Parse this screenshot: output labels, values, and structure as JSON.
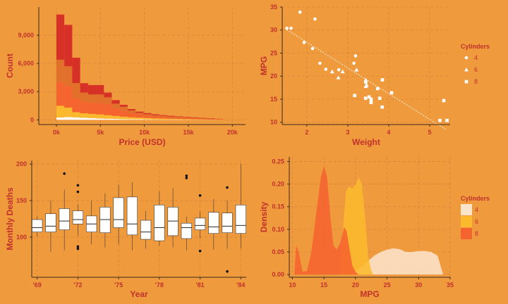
{
  "colors": {
    "background": "#F09A3E",
    "text": "#C0312B",
    "grid": "#D9843A",
    "white": "#FFFFFF",
    "cyl4": "#FCE3CC",
    "cyl6": "#FBBA2D",
    "cyl8": "#F5632F"
  },
  "chart_data": [
    {
      "id": "hist",
      "type": "bar",
      "stacked": true,
      "xlabel": "Price (USD)",
      "ylabel": "Count",
      "xlim": [
        -2000,
        21500
      ],
      "ylim": [
        -500,
        12000
      ],
      "bin_width": 900,
      "bin_starts": [
        0,
        900,
        1800,
        2700,
        3600,
        4500,
        5400,
        6300,
        7200,
        8100,
        9000,
        9900,
        10800,
        11700,
        12600,
        13500,
        14400,
        15300,
        16200,
        17100,
        18000
      ],
      "xticks": [
        0,
        5000,
        10000,
        15000,
        20000
      ],
      "xtick_labels": [
        "0k",
        "5k",
        "10k",
        "15k",
        "20k"
      ],
      "yticks": [
        0,
        3000,
        6000,
        9000
      ],
      "ytick_labels": [
        "0",
        "3,000",
        "6,000",
        "9,000"
      ],
      "series": [
        {
          "color": "#FFFFFF",
          "values": [
            250,
            300,
            260,
            220,
            190,
            150,
            120,
            100,
            80,
            70,
            60,
            50,
            40,
            35,
            30,
            25,
            20,
            15,
            12,
            10,
            5
          ]
        },
        {
          "color": "#FBBA2D",
          "values": [
            1250,
            1000,
            550,
            480,
            450,
            430,
            380,
            320,
            260,
            210,
            180,
            150,
            120,
            100,
            85,
            75,
            60,
            50,
            40,
            30,
            20
          ]
        },
        {
          "color": "#F5632F",
          "values": [
            2500,
            2300,
            1500,
            1200,
            1160,
            1220,
            1200,
            800,
            600,
            420,
            300,
            250,
            200,
            170,
            145,
            125,
            110,
            85,
            70,
            55,
            35
          ]
        },
        {
          "color": "#E0702A",
          "values": [
            2400,
            2100,
            1600,
            1000,
            900,
            900,
            700,
            500,
            460,
            300,
            200,
            150,
            140,
            120,
            100,
            90,
            70,
            60,
            50,
            40,
            30
          ]
        },
        {
          "color": "#D73027",
          "values": [
            4800,
            4400,
            2700,
            1000,
            1000,
            1000,
            500,
            380,
            200,
            150,
            140,
            120,
            100,
            75,
            70,
            55,
            50,
            50,
            40,
            35,
            20
          ]
        }
      ]
    },
    {
      "id": "scatter",
      "type": "scatter",
      "xlabel": "Weight",
      "ylabel": "MPG",
      "xlim": [
        1.4,
        5.5
      ],
      "ylim": [
        9.5,
        35
      ],
      "xticks": [
        2,
        3,
        4,
        5
      ],
      "yticks": [
        10,
        15,
        20,
        25,
        30,
        35
      ],
      "legend": {
        "title": "Cylinders",
        "labels": [
          "4",
          "6",
          "8"
        ],
        "position": "right"
      },
      "trendline": {
        "x": [
          1.51,
          5.42
        ],
        "y": [
          30.1,
          8.3
        ]
      },
      "points": [
        {
          "x": 2.62,
          "y": 21.0,
          "cyl": 6
        },
        {
          "x": 2.875,
          "y": 21.0,
          "cyl": 6
        },
        {
          "x": 2.32,
          "y": 22.8,
          "cyl": 4
        },
        {
          "x": 3.215,
          "y": 21.4,
          "cyl": 6
        },
        {
          "x": 3.44,
          "y": 18.7,
          "cyl": 8
        },
        {
          "x": 3.46,
          "y": 18.1,
          "cyl": 6
        },
        {
          "x": 3.57,
          "y": 14.3,
          "cyl": 8
        },
        {
          "x": 3.19,
          "y": 24.4,
          "cyl": 4
        },
        {
          "x": 3.15,
          "y": 22.8,
          "cyl": 4
        },
        {
          "x": 3.44,
          "y": 19.2,
          "cyl": 6
        },
        {
          "x": 3.44,
          "y": 17.8,
          "cyl": 6
        },
        {
          "x": 4.07,
          "y": 16.4,
          "cyl": 8
        },
        {
          "x": 3.73,
          "y": 17.3,
          "cyl": 8
        },
        {
          "x": 3.78,
          "y": 15.2,
          "cyl": 8
        },
        {
          "x": 5.25,
          "y": 10.4,
          "cyl": 8
        },
        {
          "x": 5.424,
          "y": 10.4,
          "cyl": 8
        },
        {
          "x": 5.345,
          "y": 14.7,
          "cyl": 8
        },
        {
          "x": 2.2,
          "y": 32.4,
          "cyl": 4
        },
        {
          "x": 1.615,
          "y": 30.4,
          "cyl": 4
        },
        {
          "x": 1.835,
          "y": 33.9,
          "cyl": 4
        },
        {
          "x": 2.465,
          "y": 21.5,
          "cyl": 4
        },
        {
          "x": 3.52,
          "y": 15.5,
          "cyl": 8
        },
        {
          "x": 3.435,
          "y": 15.2,
          "cyl": 8
        },
        {
          "x": 3.84,
          "y": 13.3,
          "cyl": 8
        },
        {
          "x": 3.845,
          "y": 19.2,
          "cyl": 8
        },
        {
          "x": 1.935,
          "y": 27.3,
          "cyl": 4
        },
        {
          "x": 2.14,
          "y": 26.0,
          "cyl": 4
        },
        {
          "x": 1.513,
          "y": 30.4,
          "cyl": 4
        },
        {
          "x": 3.17,
          "y": 15.8,
          "cyl": 8
        },
        {
          "x": 2.77,
          "y": 19.7,
          "cyl": 6
        },
        {
          "x": 3.57,
          "y": 15.0,
          "cyl": 8
        },
        {
          "x": 2.78,
          "y": 21.4,
          "cyl": 4
        }
      ]
    },
    {
      "id": "boxplot",
      "type": "boxplot",
      "xlabel": "Year",
      "ylabel": "Monthly Deaths",
      "xlim": [
        1968.6,
        1984.4
      ],
      "ylim": [
        45,
        205
      ],
      "xticks": [
        1969,
        1972,
        1975,
        1978,
        1981,
        1984
      ],
      "xtick_labels": [
        "'69",
        "'72",
        "'75",
        "'78",
        "'81",
        "'84"
      ],
      "yticks": [
        100,
        150,
        200
      ],
      "boxes": [
        {
          "year": 1969,
          "low": 101,
          "q1": 107,
          "median": 113,
          "q3": 124,
          "high": 128,
          "outliers": []
        },
        {
          "year": 1970,
          "low": 80,
          "q1": 107,
          "median": 115,
          "q3": 132,
          "high": 150,
          "outliers": []
        },
        {
          "year": 1971,
          "low": 82,
          "q1": 110,
          "median": 122,
          "q3": 139,
          "high": 165,
          "outliers": [
            187
          ]
        },
        {
          "year": 1972,
          "low": 102,
          "q1": 118,
          "median": 124,
          "q3": 136,
          "high": 145,
          "outliers": [
            171,
            162,
            87,
            84
          ]
        },
        {
          "year": 1973,
          "low": 90,
          "q1": 107,
          "median": 118,
          "q3": 129,
          "high": 150,
          "outliers": []
        },
        {
          "year": 1974,
          "low": 86,
          "q1": 106,
          "median": 124,
          "q3": 141,
          "high": 160,
          "outliers": []
        },
        {
          "year": 1975,
          "low": 90,
          "q1": 113,
          "median": 124,
          "q3": 154,
          "high": 172,
          "outliers": []
        },
        {
          "year": 1976,
          "low": 82,
          "q1": 103,
          "median": 118,
          "q3": 155,
          "high": 175,
          "outliers": []
        },
        {
          "year": 1977,
          "low": 84,
          "q1": 97,
          "median": 107,
          "q3": 123,
          "high": 136,
          "outliers": []
        },
        {
          "year": 1978,
          "low": 88,
          "q1": 95,
          "median": 113,
          "q3": 144,
          "high": 163,
          "outliers": []
        },
        {
          "year": 1979,
          "low": 86,
          "q1": 102,
          "median": 122,
          "q3": 141,
          "high": 167,
          "outliers": []
        },
        {
          "year": 1980,
          "low": 82,
          "q1": 98,
          "median": 113,
          "q3": 119,
          "high": 128,
          "outliers": [
            184,
            181
          ]
        },
        {
          "year": 1981,
          "low": 98,
          "q1": 110,
          "median": 116,
          "q3": 126,
          "high": 135,
          "outliers": [
            157,
            81
          ]
        },
        {
          "year": 1982,
          "low": 83,
          "q1": 105,
          "median": 114,
          "q3": 134,
          "high": 152,
          "outliers": []
        },
        {
          "year": 1983,
          "low": 84,
          "q1": 106,
          "median": 115,
          "q3": 133,
          "high": 150,
          "outliers": [
            168,
            53
          ]
        },
        {
          "year": 1984,
          "low": 84,
          "q1": 105,
          "median": 116,
          "q3": 144,
          "high": 200,
          "outliers": []
        }
      ]
    },
    {
      "id": "density",
      "type": "area",
      "xlabel": "MPG",
      "ylabel": "Density",
      "xlim": [
        9.5,
        35
      ],
      "ylim": [
        -0.006,
        0.26
      ],
      "xticks": [
        10,
        15,
        20,
        25,
        30,
        35
      ],
      "yticks": [
        0.0,
        0.05,
        0.1,
        0.15,
        0.2,
        0.25
      ],
      "ytick_labels": [
        "0.00",
        "0.05",
        "0.10",
        "0.15",
        "0.20",
        "0.25"
      ],
      "legend": {
        "title": "Cylinders",
        "labels": [
          "4",
          "6",
          "8"
        ],
        "position": "right"
      },
      "series": [
        {
          "cyl": 4,
          "x": [
            19.5,
            20,
            21,
            22,
            23,
            24,
            25,
            26,
            27,
            28,
            29,
            30,
            31,
            32,
            33,
            33.9
          ],
          "y": [
            0.0,
            0.006,
            0.018,
            0.03,
            0.042,
            0.05,
            0.055,
            0.058,
            0.056,
            0.05,
            0.05,
            0.052,
            0.052,
            0.05,
            0.042,
            0.0
          ]
        },
        {
          "cyl": 6,
          "x": [
            17.5,
            17.8,
            18,
            18.5,
            19,
            19.5,
            20,
            20.5,
            21,
            21.5,
            22,
            22.5,
            22.8
          ],
          "y": [
            0.0,
            0.05,
            0.1,
            0.185,
            0.195,
            0.19,
            0.2,
            0.215,
            0.2,
            0.13,
            0.04,
            0.008,
            0.0
          ]
        },
        {
          "cyl": 8,
          "x": [
            10.3,
            10.6,
            11,
            11.6,
            12.3,
            13,
            14,
            14.5,
            15,
            15.5,
            16,
            16.5,
            17,
            17.6,
            18.2,
            18.6,
            19,
            19.5,
            20,
            20.5,
            21
          ],
          "y": [
            0.0,
            0.065,
            0.05,
            0.006,
            0.008,
            0.05,
            0.16,
            0.215,
            0.24,
            0.215,
            0.13,
            0.065,
            0.055,
            0.07,
            0.105,
            0.095,
            0.06,
            0.02,
            0.006,
            0.0,
            0.0
          ]
        }
      ]
    }
  ]
}
